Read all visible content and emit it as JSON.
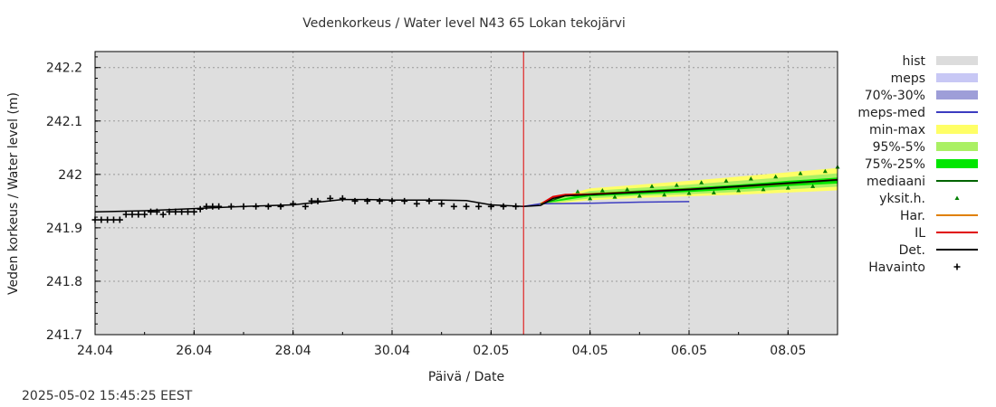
{
  "chart_data": {
    "type": "line",
    "title": "Vedenkorkeus / Water level   N43 65 Lokan tekojärvi",
    "xlabel": "Päivä / Date",
    "ylabel": "Veden korkeus / Water level (m)",
    "xlim": [
      "2025-04-24",
      "2025-05-09"
    ],
    "ylim": [
      241.7,
      242.23
    ],
    "x_ticks": [
      "24.04",
      "26.04",
      "28.04",
      "30.04",
      "02.05",
      "04.05",
      "06.05",
      "08.05"
    ],
    "y_ticks": [
      241.7,
      241.8,
      241.9,
      242,
      242.1,
      242.2
    ],
    "y_tick_labels": [
      "241.7",
      "241.8",
      "241.9",
      "242",
      "242.1",
      "242.2"
    ],
    "grid": true,
    "forecast_start": "2025-05-02 15:45",
    "legend_position": "right",
    "legend": [
      {
        "name": "hist",
        "kind": "band",
        "color": "#dcdcdc"
      },
      {
        "name": "meps",
        "kind": "band",
        "color": "#c8c8f5"
      },
      {
        "name": "70%-30%",
        "kind": "band",
        "color": "#9e9ed8"
      },
      {
        "name": "meps-med",
        "kind": "line",
        "color": "#3c3cc0"
      },
      {
        "name": "min-max",
        "kind": "band",
        "color": "#ffff66"
      },
      {
        "name": "95%-5%",
        "kind": "band",
        "color": "#aaf064"
      },
      {
        "name": "75%-25%",
        "kind": "band",
        "color": "#00e600"
      },
      {
        "name": "mediaani",
        "kind": "line",
        "color": "#006400"
      },
      {
        "name": "yksit.h.",
        "kind": "point",
        "color": "#008000"
      },
      {
        "name": "Har.",
        "kind": "line",
        "color": "#e08000"
      },
      {
        "name": "IL",
        "kind": "line",
        "color": "#e00000"
      },
      {
        "name": "Det.",
        "kind": "line",
        "color": "#000000"
      },
      {
        "name": "Havainto",
        "kind": "plus",
        "color": "#000000"
      }
    ],
    "series": [
      {
        "name": "Havainto",
        "type": "scatter",
        "points": [
          [
            "2025-04-24 00:00",
            241.915
          ],
          [
            "2025-04-24 03:00",
            241.915
          ],
          [
            "2025-04-24 06:00",
            241.915
          ],
          [
            "2025-04-24 09:00",
            241.915
          ],
          [
            "2025-04-24 12:00",
            241.915
          ],
          [
            "2025-04-24 15:00",
            241.925
          ],
          [
            "2025-04-24 18:00",
            241.925
          ],
          [
            "2025-04-24 21:00",
            241.925
          ],
          [
            "2025-04-25 00:00",
            241.925
          ],
          [
            "2025-04-25 03:00",
            241.93
          ],
          [
            "2025-04-25 06:00",
            241.93
          ],
          [
            "2025-04-25 09:00",
            241.925
          ],
          [
            "2025-04-25 12:00",
            241.93
          ],
          [
            "2025-04-25 15:00",
            241.93
          ],
          [
            "2025-04-25 18:00",
            241.93
          ],
          [
            "2025-04-25 21:00",
            241.93
          ],
          [
            "2025-04-26 00:00",
            241.93
          ],
          [
            "2025-04-26 03:00",
            241.935
          ],
          [
            "2025-04-26 06:00",
            241.94
          ],
          [
            "2025-04-26 09:00",
            241.94
          ],
          [
            "2025-04-26 12:00",
            241.94
          ],
          [
            "2025-04-26 18:00",
            241.94
          ],
          [
            "2025-04-27 00:00",
            241.94
          ],
          [
            "2025-04-27 06:00",
            241.94
          ],
          [
            "2025-04-27 12:00",
            241.94
          ],
          [
            "2025-04-27 18:00",
            241.94
          ],
          [
            "2025-04-28 00:00",
            241.945
          ],
          [
            "2025-04-28 06:00",
            241.94
          ],
          [
            "2025-04-28 09:00",
            241.95
          ],
          [
            "2025-04-28 12:00",
            241.95
          ],
          [
            "2025-04-28 18:00",
            241.955
          ],
          [
            "2025-04-29 00:00",
            241.955
          ],
          [
            "2025-04-29 06:00",
            241.95
          ],
          [
            "2025-04-29 12:00",
            241.95
          ],
          [
            "2025-04-29 18:00",
            241.95
          ],
          [
            "2025-04-30 00:00",
            241.95
          ],
          [
            "2025-04-30 06:00",
            241.95
          ],
          [
            "2025-04-30 12:00",
            241.945
          ],
          [
            "2025-04-30 18:00",
            241.95
          ],
          [
            "2025-05-01 00:00",
            241.945
          ],
          [
            "2025-05-01 06:00",
            241.94
          ],
          [
            "2025-05-01 12:00",
            241.94
          ],
          [
            "2025-05-01 18:00",
            241.94
          ],
          [
            "2025-05-02 00:00",
            241.94
          ],
          [
            "2025-05-02 06:00",
            241.94
          ],
          [
            "2025-05-02 12:00",
            241.94
          ]
        ]
      },
      {
        "name": "Det.",
        "type": "line",
        "points": [
          [
            "2025-04-24 00:00",
            241.93
          ],
          [
            "2025-04-25 00:00",
            241.932
          ],
          [
            "2025-04-26 00:00",
            241.936
          ],
          [
            "2025-04-27 00:00",
            241.94
          ],
          [
            "2025-04-28 00:00",
            241.943
          ],
          [
            "2025-04-28 12:00",
            241.948
          ],
          [
            "2025-04-29 00:00",
            241.953
          ],
          [
            "2025-04-29 12:00",
            241.953
          ],
          [
            "2025-04-30 00:00",
            241.952
          ],
          [
            "2025-04-30 12:00",
            241.952
          ],
          [
            "2025-05-01 00:00",
            241.952
          ],
          [
            "2025-05-01 12:00",
            241.951
          ],
          [
            "2025-05-02 00:00",
            241.943
          ],
          [
            "2025-05-02 15:45",
            241.94
          ],
          [
            "2025-05-03 00:00",
            241.942
          ],
          [
            "2025-05-03 06:00",
            241.955
          ],
          [
            "2025-05-03 12:00",
            241.96
          ],
          [
            "2025-05-04 00:00",
            241.962
          ],
          [
            "2025-05-05 00:00",
            241.967
          ],
          [
            "2025-05-06 00:00",
            241.972
          ],
          [
            "2025-05-07 00:00",
            241.978
          ],
          [
            "2025-05-08 00:00",
            241.984
          ],
          [
            "2025-05-09 00:00",
            241.99
          ]
        ]
      },
      {
        "name": "meps-med",
        "type": "line",
        "points": [
          [
            "2025-05-02 15:45",
            241.94
          ],
          [
            "2025-05-03 00:00",
            241.945
          ],
          [
            "2025-05-04 00:00",
            241.946
          ],
          [
            "2025-05-05 00:00",
            241.948
          ],
          [
            "2025-05-06 00:00",
            241.949
          ]
        ]
      },
      {
        "name": "IL",
        "type": "line",
        "points": [
          [
            "2025-05-03 00:00",
            241.944
          ],
          [
            "2025-05-03 06:00",
            241.958
          ],
          [
            "2025-05-03 12:00",
            241.962
          ],
          [
            "2025-05-04 00:00",
            241.963
          ],
          [
            "2025-05-05 00:00",
            241.967
          ],
          [
            "2025-05-06 00:00",
            241.972
          ],
          [
            "2025-05-07 00:00",
            241.977
          ],
          [
            "2025-05-08 00:00",
            241.983
          ],
          [
            "2025-05-09 00:00",
            241.99
          ]
        ]
      },
      {
        "name": "mediaani",
        "type": "line",
        "points": [
          [
            "2025-05-03 00:00",
            241.944
          ],
          [
            "2025-05-03 12:00",
            241.96
          ],
          [
            "2025-05-04 00:00",
            241.962
          ],
          [
            "2025-05-05 00:00",
            241.966
          ],
          [
            "2025-05-06 00:00",
            241.971
          ],
          [
            "2025-05-07 00:00",
            241.977
          ],
          [
            "2025-05-08 00:00",
            241.983
          ],
          [
            "2025-05-09 00:00",
            241.989
          ]
        ]
      },
      {
        "name": "min-max",
        "type": "band",
        "x": [
          "2025-05-03 00:00",
          "2025-05-04 00:00",
          "2025-05-05 00:00",
          "2025-05-06 00:00",
          "2025-05-07 00:00",
          "2025-05-08 00:00",
          "2025-05-09 00:00"
        ],
        "low": [
          241.943,
          241.952,
          241.956,
          241.959,
          241.962,
          241.966,
          241.97
        ],
        "high": [
          241.948,
          241.974,
          241.981,
          241.988,
          241.996,
          242.004,
          242.012
        ]
      },
      {
        "name": "95%-5%",
        "type": "band",
        "x": [
          "2025-05-03 00:00",
          "2025-05-04 00:00",
          "2025-05-05 00:00",
          "2025-05-06 00:00",
          "2025-05-07 00:00",
          "2025-05-08 00:00",
          "2025-05-09 00:00"
        ],
        "low": [
          241.944,
          241.955,
          241.96,
          241.963,
          241.967,
          241.972,
          241.977
        ],
        "high": [
          241.947,
          241.969,
          241.975,
          241.981,
          241.988,
          241.995,
          242.002
        ]
      },
      {
        "name": "75%-25%",
        "type": "band",
        "x": [
          "2025-05-03 00:00",
          "2025-05-04 00:00",
          "2025-05-05 00:00",
          "2025-05-06 00:00",
          "2025-05-07 00:00",
          "2025-05-08 00:00",
          "2025-05-09 00:00"
        ],
        "low": [
          241.945,
          241.959,
          241.963,
          241.967,
          241.972,
          241.978,
          241.983
        ],
        "high": [
          241.946,
          241.965,
          241.97,
          241.975,
          241.981,
          241.988,
          241.994
        ]
      },
      {
        "name": "yksit.h.",
        "type": "scatter",
        "points": [
          [
            "2025-05-03 18:00",
            241.968
          ],
          [
            "2025-05-04 00:00",
            241.955
          ],
          [
            "2025-05-04 06:00",
            241.97
          ],
          [
            "2025-05-04 12:00",
            241.958
          ],
          [
            "2025-05-04 18:00",
            241.972
          ],
          [
            "2025-05-05 00:00",
            241.96
          ],
          [
            "2025-05-05 06:00",
            241.978
          ],
          [
            "2025-05-05 12:00",
            241.962
          ],
          [
            "2025-05-05 18:00",
            241.98
          ],
          [
            "2025-05-06 00:00",
            241.965
          ],
          [
            "2025-05-06 06:00",
            241.985
          ],
          [
            "2025-05-06 12:00",
            241.966
          ],
          [
            "2025-05-06 18:00",
            241.988
          ],
          [
            "2025-05-07 00:00",
            241.97
          ],
          [
            "2025-05-07 06:00",
            241.992
          ],
          [
            "2025-05-07 12:00",
            241.972
          ],
          [
            "2025-05-07 18:00",
            241.996
          ],
          [
            "2025-05-08 00:00",
            241.975
          ],
          [
            "2025-05-08 06:00",
            242.002
          ],
          [
            "2025-05-08 12:00",
            241.978
          ],
          [
            "2025-05-08 18:00",
            242.006
          ],
          [
            "2025-05-09 00:00",
            242.014
          ]
        ]
      }
    ]
  },
  "footer_timestamp": "2025-05-02 15:45:25 EEST"
}
